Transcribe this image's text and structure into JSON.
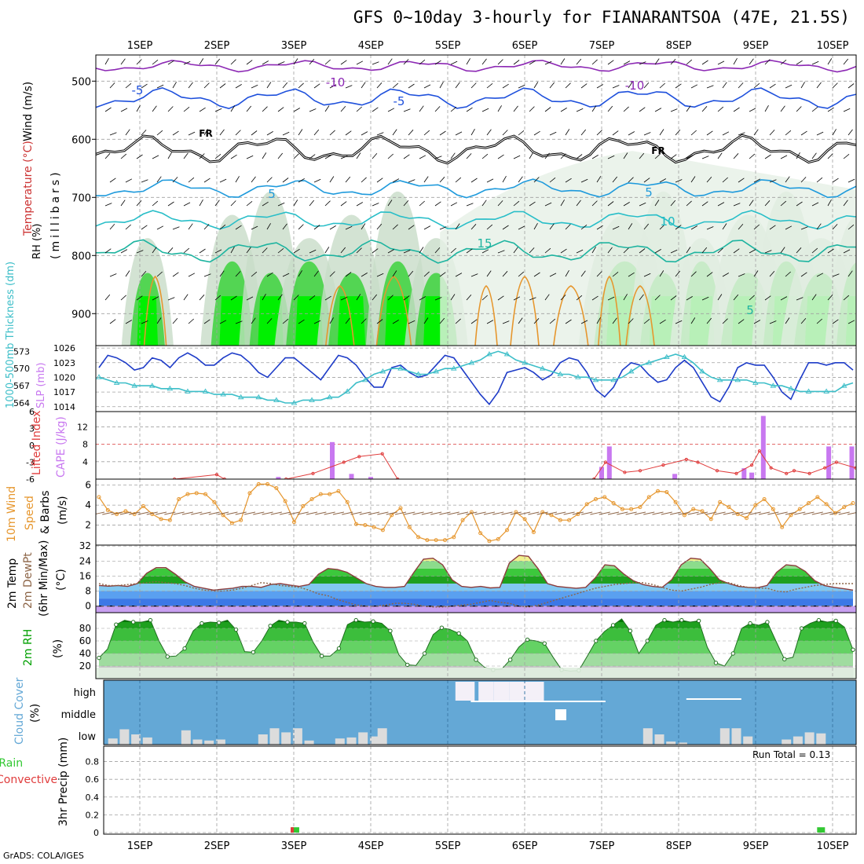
{
  "title": "GFS 0~10day 3-hourly for FIANARANTSOA (47E, 21.5S)",
  "credit": "GrADS: COLA/IGES",
  "days": [
    "1SEP",
    "2SEP",
    "3SEP",
    "4SEP",
    "5SEP",
    "6SEP",
    "7SEP",
    "8SEP",
    "9SEP",
    "10SEP"
  ],
  "colors": {
    "frame": "#000000",
    "grid": "#a0a0a0",
    "slp": "#1e3cc8",
    "thickness": "#3cbec8",
    "cape": "#c878f0",
    "lifted_index": "#e03c3c",
    "wind_speed": "#e6962d",
    "barb": "#8c6446",
    "rh_dark": "#00a000",
    "rh_mid": "#3cd23c",
    "rh_light": "#b4f0b4",
    "cloud_bg": "#64a8d6",
    "cloud_fill": "#dcdcdc",
    "precip_total": "#32c832",
    "precip_conv": "#e03c3c"
  },
  "panels": {
    "upper_air": {
      "ylabel_wind": "Wind (m/s)",
      "ylabel_temp": "Temperature (°C)",
      "ylabel_rh": "RH (%)",
      "ylabel_units": "(millibars)",
      "yticks": [
        500,
        600,
        700,
        800,
        900
      ],
      "contour_labels": [
        "-10",
        "-5",
        "FR",
        "5",
        "10",
        "15",
        "-10",
        "-5",
        "FR",
        "5",
        "10",
        "5"
      ]
    },
    "slp_thickness": {
      "ylabel_thk": "1000-500mb Thickness (dm)",
      "ylabel_slp": "SLP (mb)",
      "left_ticks": [
        "573",
        "570",
        "567",
        "564"
      ],
      "right_ticks": [
        "1026",
        "1023",
        "1020",
        "1017",
        "1014"
      ]
    },
    "cape_li": {
      "ylabel_li": "Lifted Index",
      "ylabel_cape": "CAPE (J/kg)",
      "left_ticks": [
        "6",
        "3",
        "0",
        "-3",
        "-6"
      ],
      "right_ticks": [
        "12",
        "8",
        "4"
      ]
    },
    "wind10m": {
      "ylabel_a": "10m Wind",
      "ylabel_b": "Speed",
      "ylabel_c": "& Barbs",
      "ylabel_units": "(m/s)",
      "yticks": [
        "6",
        "4",
        "2"
      ]
    },
    "temp2m": {
      "ylabel_a": "2m Temp",
      "ylabel_b": "2m DewPt",
      "ylabel_c": "(6hr Min/Max)",
      "ylabel_units": "(°C)",
      "yticks": [
        "32",
        "24",
        "16",
        "8",
        "0"
      ]
    },
    "rh2m": {
      "ylabel_a": "2m RH",
      "ylabel_units": "(%)",
      "yticks": [
        "80",
        "60",
        "40",
        "20"
      ]
    },
    "cloud": {
      "ylabel_a": "Cloud Cover",
      "ylabel_units": "(%)",
      "levels": [
        "high",
        "middle",
        "low"
      ]
    },
    "precip": {
      "ylabel_a": "Total / Rain",
      "ylabel_b": "Convective",
      "ylabel_c": "3hr Precip (mm)",
      "run_total": "Run Total = 0.13",
      "yticks": [
        "0.8",
        "0.6",
        "0.4",
        "0.2",
        "0"
      ]
    }
  },
  "chart_data": [
    {
      "type": "line",
      "panel": "slp_thickness",
      "series": [
        {
          "name": "SLP (mb)",
          "axis": "right",
          "values": [
            1022,
            1024.5,
            1024,
            1023,
            1021.5,
            1022,
            1024,
            1023.5,
            1022,
            1024,
            1025,
            1024,
            1022.5,
            1022.5,
            1024,
            1025,
            1024.5,
            1023,
            1021,
            1020,
            1022,
            1024,
            1024,
            1022.5,
            1021,
            1019.5,
            1022,
            1024.5,
            1024,
            1022.5,
            1020,
            1018,
            1018,
            1022,
            1022.5,
            1021,
            1020,
            1020.5,
            1022.5,
            1024.5,
            1024,
            1021.5,
            1019,
            1016.5,
            1014.5,
            1017,
            1021,
            1021.5,
            1022,
            1021,
            1019.5,
            1020.5,
            1023,
            1024,
            1023.5,
            1021,
            1017.5,
            1016,
            1018,
            1021.5,
            1023,
            1022.5,
            1020.5,
            1019,
            1019.5,
            1022,
            1023.5,
            1022,
            1019,
            1016,
            1015,
            1018,
            1022,
            1023,
            1022.5,
            1022.5,
            1020,
            1017,
            1015.5,
            1019.5,
            1023,
            1023,
            1022.5,
            1023,
            1023,
            1021.5
          ]
        },
        {
          "name": "1000-500mb Thickness (dm)",
          "axis": "left",
          "values": [
            568.5,
            568,
            567.5,
            567.5,
            567,
            567,
            567,
            566.5,
            566.5,
            566.5,
            566,
            566,
            566,
            565.5,
            565.5,
            565.5,
            565,
            565,
            565,
            564.5,
            564.5,
            564,
            564,
            564.5,
            564.5,
            564.5,
            565,
            565,
            566,
            567.5,
            568,
            569,
            569.5,
            570,
            570,
            569.5,
            569,
            569,
            569.5,
            570,
            570,
            570.5,
            571,
            571.5,
            572.5,
            573,
            572.5,
            571.5,
            571,
            570.5,
            570,
            569.5,
            569,
            569,
            568.5,
            568.5,
            568,
            568,
            568,
            568.5,
            569.5,
            570.5,
            571,
            571.5,
            572,
            572.5,
            572,
            571,
            569.5,
            568.5,
            568,
            568,
            568,
            568,
            567.5,
            567.5,
            567,
            567,
            566.5,
            566,
            566,
            566,
            566,
            566,
            567,
            567.5
          ]
        }
      ]
    },
    {
      "type": "bar",
      "panel": "cape_li",
      "name": "CAPE (J/kg)",
      "bars": [
        [
          3.0,
          8.5
        ],
        [
          2.3,
          0.5
        ],
        [
          3.25,
          1.2
        ],
        [
          3.5,
          0.5
        ],
        [
          6.5,
          2.8
        ],
        [
          6.6,
          7.5
        ],
        [
          7.45,
          1.2
        ],
        [
          8.35,
          2.5
        ],
        [
          8.45,
          1.5
        ],
        [
          8.6,
          14.5
        ],
        [
          9.45,
          7.5
        ],
        [
          9.75,
          7.5
        ]
      ]
    },
    {
      "type": "line",
      "panel": "cape_li",
      "name": "Lifted Index",
      "segments": [
        [
          [
            0.95,
            6
          ],
          [
            1.5,
            5.2
          ],
          [
            1.6,
            6
          ]
        ],
        [
          [
            2.4,
            6
          ],
          [
            2.75,
            5
          ],
          [
            3.15,
            3
          ],
          [
            3.35,
            2
          ],
          [
            3.65,
            1.5
          ],
          [
            3.85,
            6
          ]
        ],
        [
          [
            6.4,
            6
          ],
          [
            6.55,
            3
          ],
          [
            6.8,
            4.8
          ],
          [
            7.0,
            4.5
          ],
          [
            7.3,
            3.5
          ],
          [
            7.6,
            2.5
          ],
          [
            7.75,
            3
          ],
          [
            8.0,
            4.5
          ],
          [
            8.25,
            5
          ],
          [
            8.45,
            3.5
          ],
          [
            8.55,
            1
          ],
          [
            8.7,
            4
          ],
          [
            8.9,
            5
          ],
          [
            9.0,
            4.5
          ],
          [
            9.2,
            5
          ],
          [
            9.4,
            4
          ],
          [
            9.55,
            3
          ],
          [
            9.8,
            4
          ],
          [
            10.0,
            5
          ],
          [
            10.15,
            6
          ]
        ],
        [
          [
            10.35,
            6
          ],
          [
            10.55,
            2.5
          ]
        ]
      ]
    },
    {
      "type": "line",
      "panel": "wind10m",
      "name": "10m Wind Speed (m/s)",
      "values": [
        4.8,
        3.5,
        3.1,
        3.4,
        3.1,
        3.9,
        3.1,
        2.6,
        2.5,
        4.6,
        5.1,
        5.2,
        5.1,
        4.3,
        3.0,
        2.2,
        2.5,
        5.2,
        6.1,
        6.1,
        5.7,
        4.4,
        2.3,
        3.9,
        4.6,
        5.1,
        5.1,
        5.4,
        4.3,
        2.1,
        2.0,
        1.8,
        1.5,
        3.0,
        3.7,
        1.8,
        0.8,
        0.5,
        0.5,
        0.5,
        0.8,
        2.5,
        3.3,
        1.2,
        0.4,
        0.6,
        1.5,
        3.3,
        2.6,
        1.3,
        3.3,
        3.0,
        2.5,
        2.5,
        3.1,
        4.1,
        4.6,
        4.8,
        4.2,
        3.6,
        3.6,
        3.8,
        4.8,
        5.4,
        5.3,
        4.3,
        3.0,
        3.6,
        3.4,
        2.6,
        4.3,
        3.8,
        3.1,
        2.7,
        4.0,
        4.6,
        3.6,
        1.8,
        3.0,
        3.6,
        4.2,
        4.8,
        4.1,
        3.2,
        3.8,
        4.2
      ]
    },
    {
      "type": "area",
      "panel": "temp2m",
      "series": [
        {
          "name": "2m Temp (°C)",
          "values": [
            11,
            10.6,
            11,
            10.5,
            12,
            17.5,
            20.5,
            20.5,
            17,
            13,
            10.5,
            9.5,
            8.5,
            9,
            9.5,
            10.5,
            10.5,
            10,
            11.5,
            12,
            11.2,
            10.5,
            11.5,
            17,
            20,
            19.5,
            18,
            15,
            12,
            10.5,
            10,
            10,
            10.5,
            18,
            25,
            25.5,
            22,
            14,
            10.5,
            10,
            10.5,
            9.7,
            10,
            23,
            27,
            26.5,
            20,
            12,
            10.5,
            10,
            9.5,
            10,
            15,
            22,
            21.5,
            17,
            13.5,
            11.5,
            10.5,
            10,
            14,
            22,
            25.5,
            25,
            20,
            14,
            12,
            10.5,
            10,
            9.8,
            11,
            18,
            22,
            21.5,
            18.5,
            13.5,
            11,
            10,
            9.3,
            8.5
          ]
        },
        {
          "name": "2m DewPt (°C)",
          "values": [
            12,
            11,
            11,
            11.5,
            12,
            12.5,
            13,
            12.5,
            12,
            11,
            9.5,
            8.5,
            8,
            8,
            8.5,
            9.5,
            11,
            12.5,
            12,
            11,
            10.5,
            10,
            8.5,
            6.5,
            5.5,
            3.5,
            2,
            0.5,
            0,
            0,
            0.5,
            1.5,
            1.5,
            1,
            0,
            -0.5,
            -0.5,
            0,
            0.5,
            1,
            2,
            3,
            2,
            1.5,
            0,
            -0.5,
            0.5,
            2,
            3.5,
            5,
            6.5,
            8,
            9.5,
            10.5,
            11.5,
            12,
            12.5,
            12.5,
            11.5,
            10,
            8.5,
            8,
            9,
            10,
            11.5,
            12.5,
            12.5,
            11,
            10,
            9.5,
            9.5,
            8,
            7.5,
            9,
            10,
            11,
            11.5,
            12,
            12,
            12
          ]
        }
      ]
    },
    {
      "type": "area",
      "panel": "rh2m",
      "name": "2m RH (%)",
      "values": [
        33,
        47,
        86,
        93,
        90,
        90,
        93,
        60,
        35,
        36,
        48,
        76,
        88,
        90,
        89,
        93,
        78,
        43,
        42,
        60,
        84,
        93,
        90,
        90,
        88,
        58,
        36,
        36,
        48,
        86,
        93,
        90,
        91,
        88,
        76,
        38,
        22,
        21,
        40,
        70,
        81,
        78,
        72,
        60,
        30,
        18,
        14,
        15,
        30,
        50,
        62,
        60,
        56,
        34,
        14,
        12,
        13,
        36,
        60,
        75,
        85,
        95,
        76,
        40,
        60,
        85,
        93,
        90,
        93,
        90,
        92,
        50,
        25,
        20,
        40,
        80,
        88,
        85,
        90,
        60,
        31,
        34,
        80,
        88,
        93,
        90,
        92,
        82,
        46
      ]
    },
    {
      "type": "bar",
      "panel": "cloud",
      "name": "Low Cloud Cover (%)",
      "bars": [
        [
          0.15,
          30
        ],
        [
          0.3,
          75
        ],
        [
          0.45,
          50
        ],
        [
          0.6,
          35
        ],
        [
          1.1,
          70
        ],
        [
          1.25,
          25
        ],
        [
          1.4,
          20
        ],
        [
          1.55,
          25
        ],
        [
          2.1,
          50
        ],
        [
          2.25,
          80
        ],
        [
          2.4,
          60
        ],
        [
          2.55,
          80
        ],
        [
          2.7,
          20
        ],
        [
          3.1,
          30
        ],
        [
          3.25,
          35
        ],
        [
          3.4,
          60
        ],
        [
          3.55,
          40
        ],
        [
          3.65,
          80
        ],
        [
          7.1,
          80
        ],
        [
          7.25,
          50
        ],
        [
          7.4,
          15
        ],
        [
          7.55,
          10
        ],
        [
          8.1,
          80
        ],
        [
          8.25,
          80
        ],
        [
          8.4,
          40
        ],
        [
          8.9,
          25
        ],
        [
          9.05,
          40
        ],
        [
          9.2,
          60
        ],
        [
          9.35,
          55
        ]
      ]
    },
    {
      "type": "bar",
      "panel": "precip",
      "series": [
        {
          "name": "Total / Rain (mm)",
          "bars": [
            [
              2.02,
              0.06
            ],
            [
              8.85,
              0.06
            ]
          ]
        },
        {
          "name": "Convective (mm)",
          "bars": [
            [
              1.99,
              0.06
            ]
          ]
        }
      ],
      "ylim": [
        0,
        0.9
      ]
    }
  ]
}
